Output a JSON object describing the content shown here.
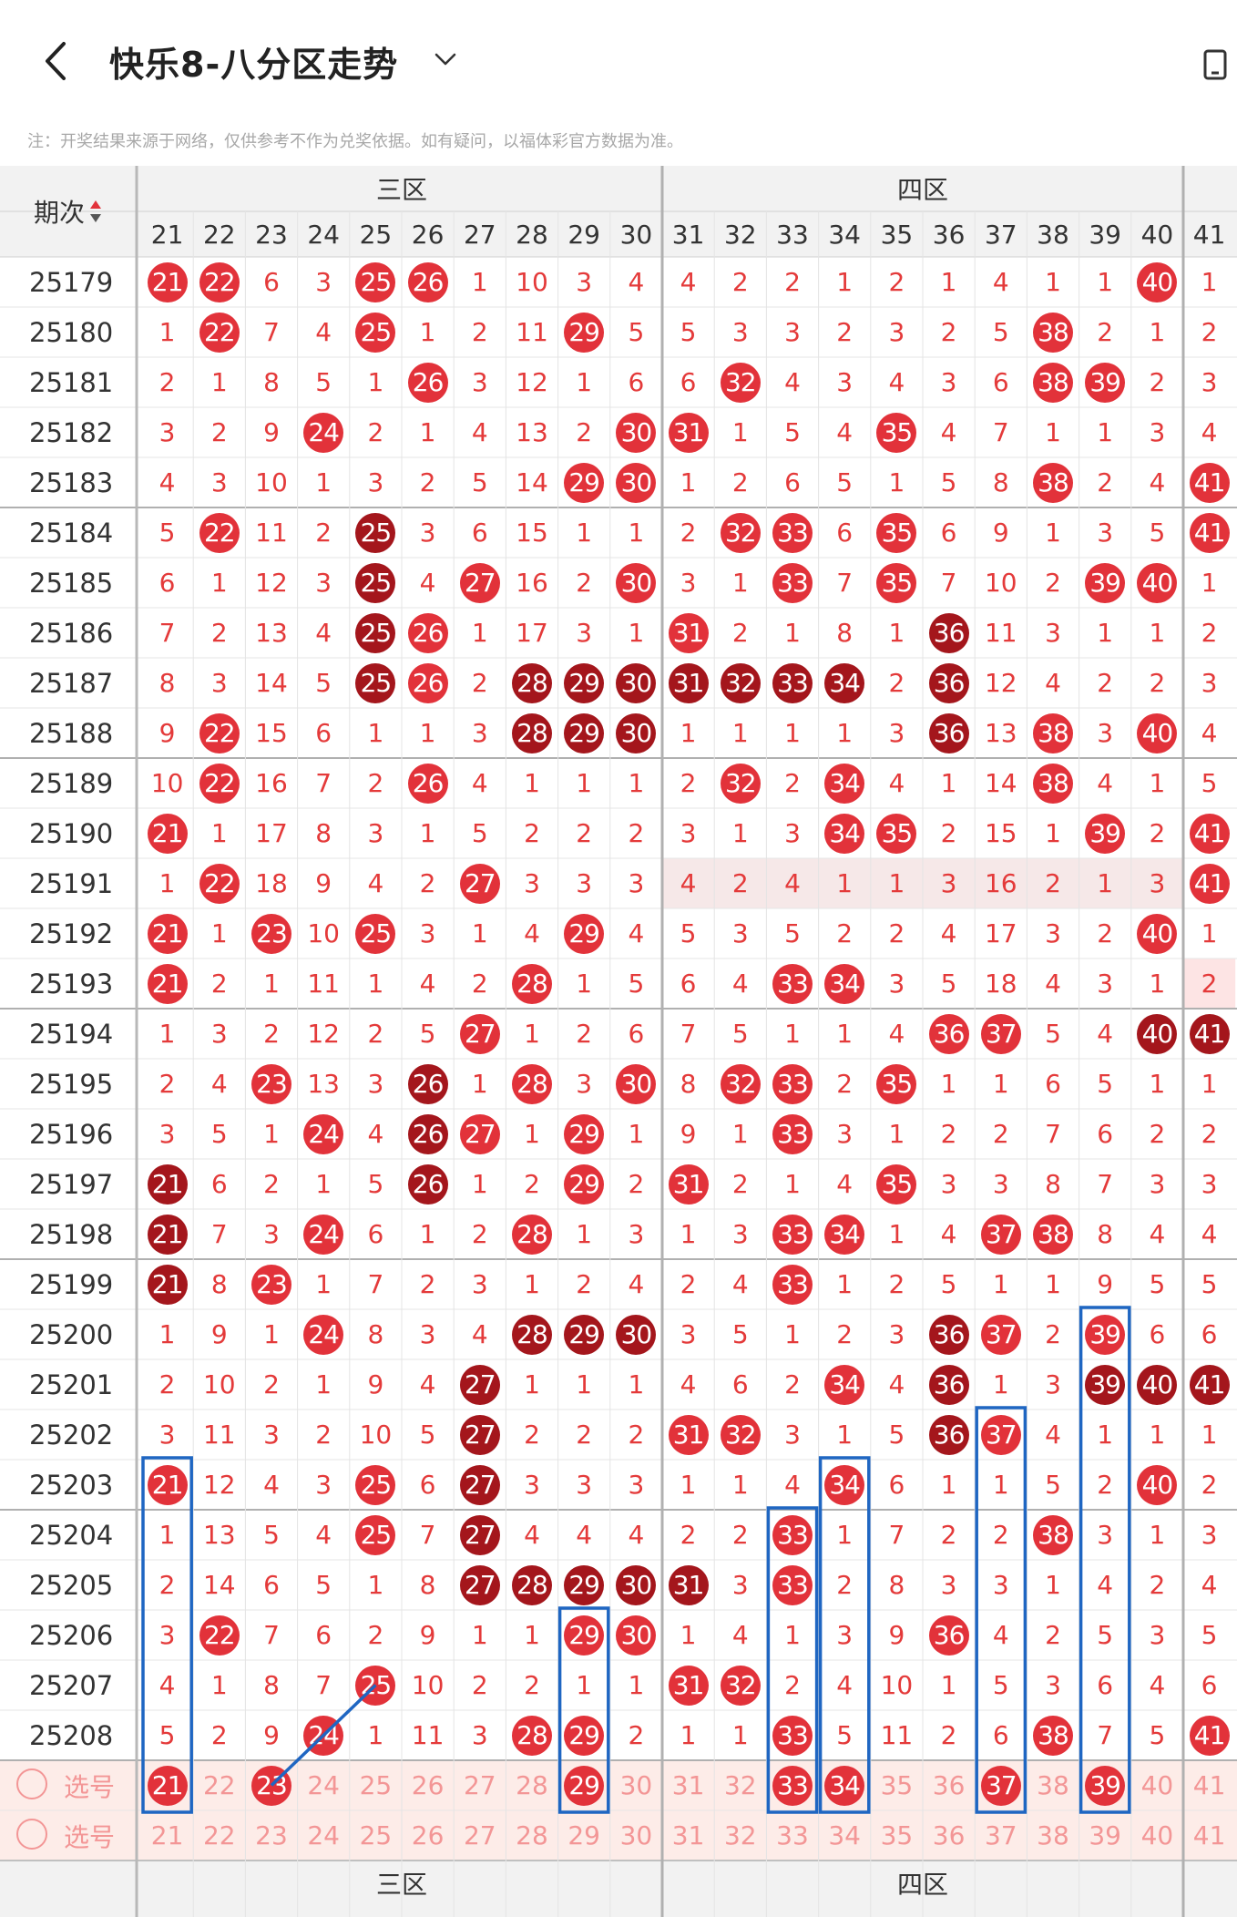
{
  "header": {
    "title": "快乐8-八分区走势"
  },
  "note": "注：开奖结果来源于网络，仅供参考不作为兑奖依据。如有疑问，以福体彩官方数据为准。",
  "table": {
    "issue_header": "期次",
    "zones": [
      {
        "name": "三区",
        "from": 21,
        "to": 30
      },
      {
        "name": "四区",
        "from": 31,
        "to": 40
      }
    ],
    "columns": [
      21,
      22,
      23,
      24,
      25,
      26,
      27,
      28,
      29,
      30,
      31,
      32,
      33,
      34,
      35,
      36,
      37,
      38,
      39,
      40,
      41
    ],
    "rows": [
      {
        "issue": "25179",
        "v": [
          "21b",
          "22b",
          "6",
          "3",
          "25b",
          "26b",
          "1",
          "10",
          "3",
          "4",
          "4",
          "2",
          "2",
          "1",
          "2",
          "1",
          "4",
          "1",
          "1",
          "40b",
          "1"
        ]
      },
      {
        "issue": "25180",
        "v": [
          "1",
          "22b",
          "7",
          "4",
          "25b",
          "1",
          "2",
          "11",
          "29b",
          "5",
          "5",
          "3",
          "3",
          "2",
          "3",
          "2",
          "5",
          "38b",
          "2",
          "1",
          "2"
        ]
      },
      {
        "issue": "25181",
        "v": [
          "2",
          "1",
          "8",
          "5",
          "1",
          "26b",
          "3",
          "12",
          "1",
          "6",
          "6",
          "32b",
          "4",
          "3",
          "4",
          "3",
          "6",
          "38b",
          "39b",
          "2",
          "3"
        ]
      },
      {
        "issue": "25182",
        "v": [
          "3",
          "2",
          "9",
          "24b",
          "2",
          "1",
          "4",
          "13",
          "2",
          "30b",
          "31b",
          "1",
          "5",
          "4",
          "35b",
          "4",
          "7",
          "1",
          "1",
          "3",
          "4"
        ]
      },
      {
        "issue": "25183",
        "v": [
          "4",
          "3",
          "10",
          "1",
          "3",
          "2",
          "5",
          "14",
          "29b",
          "30b",
          "1",
          "2",
          "6",
          "5",
          "1",
          "5",
          "8",
          "38b",
          "2",
          "4",
          "41b"
        ]
      },
      {
        "issue": "25184",
        "v": [
          "5",
          "22b",
          "11",
          "2",
          "25d",
          "3",
          "6",
          "15",
          "1",
          "1",
          "2",
          "32b",
          "33b",
          "6",
          "35b",
          "6",
          "9",
          "1",
          "3",
          "5",
          "41b"
        ]
      },
      {
        "issue": "25185",
        "v": [
          "6",
          "1",
          "12",
          "3",
          "25d",
          "4",
          "27b",
          "16",
          "2",
          "30b",
          "3",
          "1",
          "33b",
          "7",
          "35b",
          "7",
          "10",
          "2",
          "39b",
          "40b",
          "1"
        ]
      },
      {
        "issue": "25186",
        "v": [
          "7",
          "2",
          "13",
          "4",
          "25d",
          "26b",
          "1",
          "17",
          "3",
          "1",
          "31b",
          "2",
          "1",
          "8",
          "1",
          "36d",
          "11",
          "3",
          "1",
          "1",
          "2"
        ]
      },
      {
        "issue": "25187",
        "v": [
          "8",
          "3",
          "14",
          "5",
          "25d",
          "26b",
          "2",
          "28d",
          "29d",
          "30d",
          "31d",
          "32d",
          "33d",
          "34d",
          "2",
          "36d",
          "12",
          "4",
          "2",
          "2",
          "3"
        ]
      },
      {
        "issue": "25188",
        "v": [
          "9",
          "22b",
          "15",
          "6",
          "1",
          "1",
          "3",
          "28d",
          "29d",
          "30d",
          "1",
          "1",
          "1",
          "1",
          "3",
          "36d",
          "13",
          "38b",
          "3",
          "40b",
          "4"
        ]
      },
      {
        "issue": "25189",
        "v": [
          "10",
          "22b",
          "16",
          "7",
          "2",
          "26b",
          "4",
          "1",
          "1",
          "1",
          "2",
          "32b",
          "2",
          "34b",
          "4",
          "1",
          "14",
          "38b",
          "4",
          "1",
          "5"
        ]
      },
      {
        "issue": "25190",
        "v": [
          "21b",
          "1",
          "17",
          "8",
          "3",
          "1",
          "5",
          "2",
          "2",
          "2",
          "3",
          "1",
          "3",
          "34b",
          "35b",
          "2",
          "15",
          "1",
          "39b",
          "2",
          "41b"
        ]
      },
      {
        "issue": "25191",
        "v": [
          "1",
          "22b",
          "18",
          "9",
          "4",
          "2",
          "27b",
          "3",
          "3",
          "3",
          "4",
          "2",
          "4",
          "1",
          "1",
          "3",
          "16",
          "2",
          "1",
          "3",
          "41b"
        ]
      },
      {
        "issue": "25192",
        "v": [
          "21b",
          "1",
          "23b",
          "10",
          "25b",
          "3",
          "1",
          "4",
          "29b",
          "4",
          "5",
          "3",
          "5",
          "2",
          "2",
          "4",
          "17",
          "3",
          "2",
          "40b",
          "1"
        ]
      },
      {
        "issue": "25193",
        "v": [
          "21b",
          "2",
          "1",
          "11",
          "1",
          "4",
          "2",
          "28b",
          "1",
          "5",
          "6",
          "4",
          "33b",
          "34b",
          "3",
          "5",
          "18",
          "4",
          "3",
          "1",
          "2"
        ]
      },
      {
        "issue": "25194",
        "v": [
          "1",
          "3",
          "2",
          "12",
          "2",
          "5",
          "27b",
          "1",
          "2",
          "6",
          "7",
          "5",
          "1",
          "1",
          "4",
          "36b",
          "37b",
          "5",
          "4",
          "40d",
          "41d"
        ]
      },
      {
        "issue": "25195",
        "v": [
          "2",
          "4",
          "23b",
          "13",
          "3",
          "26d",
          "1",
          "28b",
          "3",
          "30b",
          "8",
          "32b",
          "33b",
          "2",
          "35b",
          "1",
          "1",
          "6",
          "5",
          "1",
          "1"
        ]
      },
      {
        "issue": "25196",
        "v": [
          "3",
          "5",
          "1",
          "24b",
          "4",
          "26d",
          "27b",
          "1",
          "29b",
          "1",
          "9",
          "1",
          "33b",
          "3",
          "1",
          "2",
          "2",
          "7",
          "6",
          "2",
          "2"
        ]
      },
      {
        "issue": "25197",
        "v": [
          "21d",
          "6",
          "2",
          "1",
          "5",
          "26d",
          "1",
          "2",
          "29b",
          "2",
          "31b",
          "2",
          "1",
          "4",
          "35b",
          "3",
          "3",
          "8",
          "7",
          "3",
          "3"
        ]
      },
      {
        "issue": "25198",
        "v": [
          "21d",
          "7",
          "3",
          "24b",
          "6",
          "1",
          "2",
          "28b",
          "1",
          "3",
          "1",
          "3",
          "33b",
          "34b",
          "1",
          "4",
          "37b",
          "38b",
          "8",
          "4",
          "4"
        ]
      },
      {
        "issue": "25199",
        "v": [
          "21d",
          "8",
          "23b",
          "1",
          "7",
          "2",
          "3",
          "1",
          "2",
          "4",
          "2",
          "4",
          "33b",
          "1",
          "2",
          "5",
          "1",
          "1",
          "9",
          "5",
          "5"
        ]
      },
      {
        "issue": "25200",
        "v": [
          "1",
          "9",
          "1",
          "24b",
          "8",
          "3",
          "4",
          "28d",
          "29d",
          "30d",
          "3",
          "5",
          "1",
          "2",
          "3",
          "36d",
          "37b",
          "2",
          "39b",
          "6",
          "6"
        ]
      },
      {
        "issue": "25201",
        "v": [
          "2",
          "10",
          "2",
          "1",
          "9",
          "4",
          "27d",
          "1",
          "1",
          "1",
          "4",
          "6",
          "2",
          "34b",
          "4",
          "36d",
          "1",
          "3",
          "39d",
          "40d",
          "41d"
        ]
      },
      {
        "issue": "25202",
        "v": [
          "3",
          "11",
          "3",
          "2",
          "10",
          "5",
          "27d",
          "2",
          "2",
          "2",
          "31b",
          "32b",
          "3",
          "1",
          "5",
          "36d",
          "37b",
          "4",
          "1",
          "1",
          "1"
        ]
      },
      {
        "issue": "25203",
        "v": [
          "21b",
          "12",
          "4",
          "3",
          "25b",
          "6",
          "27d",
          "3",
          "3",
          "3",
          "1",
          "1",
          "4",
          "34b",
          "6",
          "1",
          "1",
          "5",
          "2",
          "40b",
          "2"
        ]
      },
      {
        "issue": "25204",
        "v": [
          "1",
          "13",
          "5",
          "4",
          "25b",
          "7",
          "27d",
          "4",
          "4",
          "4",
          "2",
          "2",
          "33b",
          "1",
          "7",
          "2",
          "2",
          "38b",
          "3",
          "1",
          "3"
        ]
      },
      {
        "issue": "25205",
        "v": [
          "2",
          "14",
          "6",
          "5",
          "1",
          "8",
          "27d",
          "28d",
          "29d",
          "30d",
          "31d",
          "3",
          "33b",
          "2",
          "8",
          "3",
          "3",
          "1",
          "4",
          "2",
          "4"
        ]
      },
      {
        "issue": "25206",
        "v": [
          "3",
          "22b",
          "7",
          "6",
          "2",
          "9",
          "1",
          "1",
          "29b",
          "30b",
          "1",
          "4",
          "1",
          "3",
          "9",
          "36b",
          "4",
          "2",
          "5",
          "3",
          "5"
        ]
      },
      {
        "issue": "25207",
        "v": [
          "4",
          "1",
          "8",
          "7",
          "25b",
          "10",
          "2",
          "2",
          "1",
          "1",
          "31b",
          "32b",
          "2",
          "4",
          "10",
          "1",
          "5",
          "3",
          "6",
          "4",
          "6"
        ]
      },
      {
        "issue": "25208",
        "v": [
          "5",
          "2",
          "9",
          "24b",
          "1",
          "11",
          "3",
          "28b",
          "29b",
          "2",
          "1",
          "1",
          "33b",
          "5",
          "11",
          "2",
          "6",
          "38b",
          "7",
          "5",
          "41b"
        ]
      }
    ],
    "pending_row": {
      "label": "选号",
      "v": [
        "21b",
        "22",
        "23b",
        "24",
        "25",
        "26",
        "27",
        "28",
        "29b",
        "30",
        "31",
        "32",
        "33b",
        "34b",
        "35",
        "36",
        "37b",
        "38",
        "39b",
        "40",
        "41"
      ]
    },
    "select_row": {
      "label": "选号"
    }
  },
  "colors": {
    "accent": "#e2323a",
    "dark": "#a4161c",
    "box": "#1f66c2"
  }
}
